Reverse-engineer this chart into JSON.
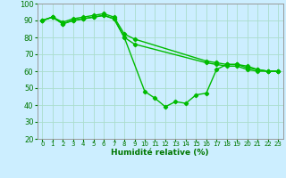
{
  "title": "",
  "xlabel": "Humidité relative (%)",
  "ylabel": "",
  "background_color": "#cceeff",
  "grid_color": "#aaddcc",
  "line_color": "#00bb00",
  "ylim": [
    20,
    100
  ],
  "xlim": [
    -0.5,
    23.5
  ],
  "yticks": [
    20,
    30,
    40,
    50,
    60,
    70,
    80,
    90,
    100
  ],
  "xticks": [
    0,
    1,
    2,
    3,
    4,
    5,
    6,
    7,
    8,
    9,
    10,
    11,
    12,
    13,
    14,
    15,
    16,
    17,
    18,
    19,
    20,
    21,
    22,
    23
  ],
  "series": [
    {
      "x": [
        0,
        1,
        2,
        3,
        4,
        5,
        6,
        7,
        8,
        9,
        16,
        17,
        18,
        19,
        20,
        21,
        22,
        23
      ],
      "y": [
        90,
        92,
        89,
        91,
        92,
        93,
        94,
        92,
        82,
        79,
        66,
        65,
        64,
        64,
        62,
        61,
        60,
        60
      ]
    },
    {
      "x": [
        0,
        1,
        2,
        3,
        4,
        5,
        6,
        7,
        8,
        9,
        16,
        17,
        18,
        19,
        20,
        21,
        22,
        23
      ],
      "y": [
        90,
        92,
        88,
        90,
        91,
        92,
        93,
        91,
        80,
        76,
        65,
        64,
        63,
        63,
        61,
        60,
        60,
        60
      ]
    },
    {
      "x": [
        0,
        1,
        2,
        3,
        4,
        5,
        6,
        7,
        8,
        10,
        11,
        12,
        13,
        14,
        15,
        16,
        17,
        18,
        19,
        20,
        21,
        22,
        23
      ],
      "y": [
        90,
        92,
        88,
        90,
        91,
        92,
        93,
        91,
        80,
        48,
        44,
        39,
        42,
        41,
        46,
        47,
        61,
        64,
        64,
        63,
        61,
        60,
        60
      ]
    }
  ]
}
